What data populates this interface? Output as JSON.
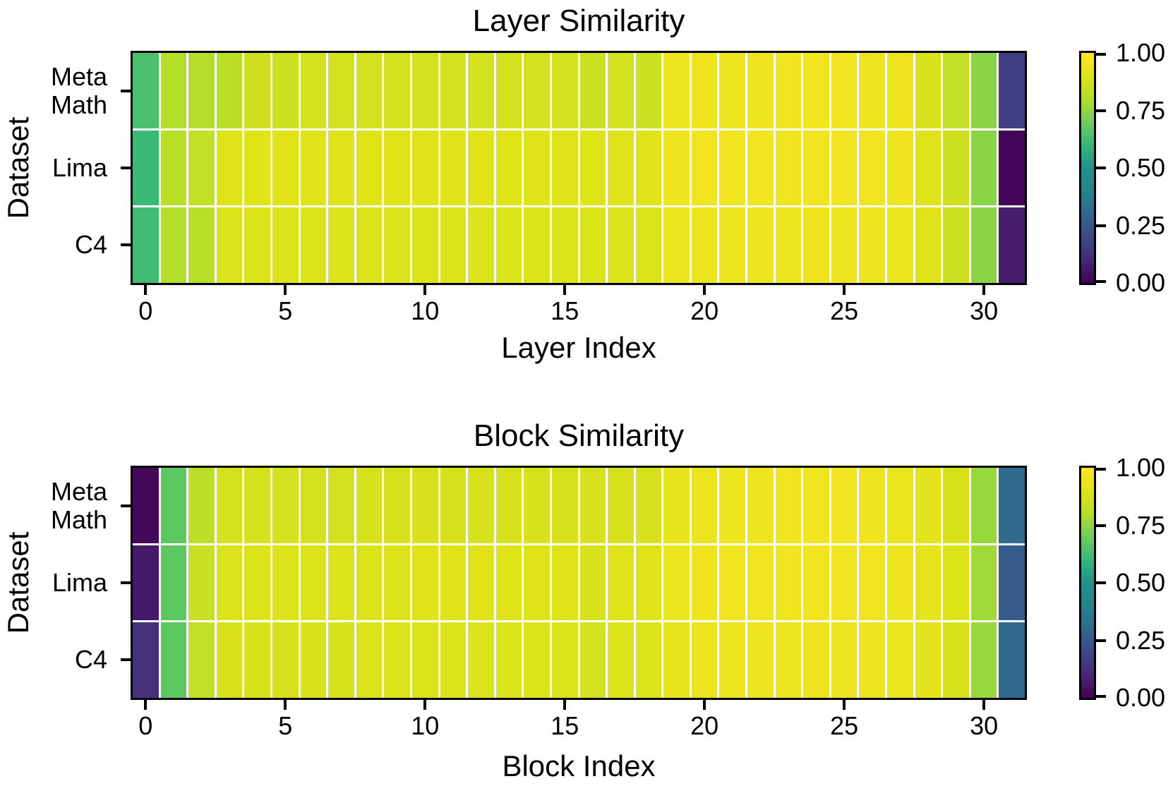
{
  "figure": {
    "background": "#ffffff"
  },
  "colors": {
    "viridis_stops": [
      "#440154",
      "#482878",
      "#3e4989",
      "#31688e",
      "#26828e",
      "#21918c",
      "#35b779",
      "#6ece58",
      "#b5de2b",
      "#dfe318",
      "#fde725"
    ],
    "grid_line": "#ffffff",
    "border": "#000000",
    "text": "#000000"
  },
  "chart_data": [
    {
      "type": "heatmap",
      "title": "Layer Similarity",
      "xlabel": "Layer Index",
      "ylabel": "Dataset",
      "x_range": [
        0,
        31
      ],
      "n_cols": 32,
      "x_tick_labels": [
        "0",
        "5",
        "10",
        "15",
        "20",
        "25",
        "30"
      ],
      "x_tick_positions": [
        0,
        5,
        10,
        15,
        20,
        25,
        30
      ],
      "categories_y": [
        "Meta Math",
        "Lima",
        "C4"
      ],
      "row_label_lines": [
        [
          "Meta",
          "Math"
        ],
        [
          "Lima"
        ],
        [
          "C4"
        ]
      ],
      "colorbar": {
        "colormap": "viridis",
        "range": [
          0,
          1
        ],
        "tick_labels": [
          "1.00",
          "0.75",
          "0.50",
          "0.25",
          "0.00"
        ]
      },
      "series": [
        {
          "name": "Meta Math",
          "values": [
            0.64,
            0.8,
            0.8,
            0.81,
            0.86,
            0.86,
            0.87,
            0.87,
            0.87,
            0.87,
            0.87,
            0.87,
            0.87,
            0.87,
            0.87,
            0.87,
            0.85,
            0.87,
            0.86,
            0.95,
            0.95,
            0.95,
            0.95,
            0.96,
            0.96,
            0.96,
            0.95,
            0.95,
            0.88,
            0.83,
            0.74,
            0.17
          ]
        },
        {
          "name": "Lima",
          "values": [
            0.61,
            0.81,
            0.83,
            0.9,
            0.9,
            0.9,
            0.9,
            0.9,
            0.9,
            0.9,
            0.9,
            0.9,
            0.9,
            0.9,
            0.9,
            0.9,
            0.9,
            0.9,
            0.9,
            0.95,
            0.96,
            0.96,
            0.96,
            0.96,
            0.96,
            0.96,
            0.96,
            0.95,
            0.9,
            0.86,
            0.74,
            0.01
          ]
        },
        {
          "name": "C4",
          "values": [
            0.62,
            0.8,
            0.81,
            0.89,
            0.89,
            0.89,
            0.89,
            0.89,
            0.89,
            0.89,
            0.89,
            0.89,
            0.89,
            0.89,
            0.89,
            0.89,
            0.89,
            0.89,
            0.89,
            0.94,
            0.94,
            0.95,
            0.95,
            0.95,
            0.95,
            0.95,
            0.95,
            0.94,
            0.9,
            0.86,
            0.74,
            0.07
          ]
        }
      ]
    },
    {
      "type": "heatmap",
      "title": "Block Similarity",
      "xlabel": "Block Index",
      "ylabel": "Dataset",
      "x_range": [
        0,
        31
      ],
      "n_cols": 32,
      "x_tick_labels": [
        "0",
        "5",
        "10",
        "15",
        "20",
        "25",
        "30"
      ],
      "x_tick_positions": [
        0,
        5,
        10,
        15,
        20,
        25,
        30
      ],
      "categories_y": [
        "Meta Math",
        "Lima",
        "C4"
      ],
      "row_label_lines": [
        [
          "Meta",
          "Math"
        ],
        [
          "Lima"
        ],
        [
          "C4"
        ]
      ],
      "colorbar": {
        "colormap": "viridis",
        "range": [
          0,
          1
        ],
        "tick_labels": [
          "1.00",
          "0.75",
          "0.50",
          "0.25",
          "0.00"
        ]
      },
      "series": [
        {
          "name": "Meta Math",
          "values": [
            0.02,
            0.67,
            0.82,
            0.87,
            0.87,
            0.87,
            0.87,
            0.87,
            0.88,
            0.88,
            0.88,
            0.88,
            0.88,
            0.88,
            0.88,
            0.88,
            0.88,
            0.88,
            0.88,
            0.93,
            0.94,
            0.95,
            0.95,
            0.96,
            0.96,
            0.96,
            0.95,
            0.94,
            0.92,
            0.88,
            0.76,
            0.31
          ]
        },
        {
          "name": "Lima",
          "values": [
            0.06,
            0.67,
            0.84,
            0.89,
            0.89,
            0.89,
            0.89,
            0.89,
            0.89,
            0.89,
            0.9,
            0.9,
            0.9,
            0.9,
            0.9,
            0.9,
            0.88,
            0.9,
            0.9,
            0.94,
            0.95,
            0.96,
            0.96,
            0.96,
            0.96,
            0.96,
            0.96,
            0.95,
            0.93,
            0.89,
            0.77,
            0.26
          ]
        },
        {
          "name": "C4",
          "values": [
            0.12,
            0.67,
            0.83,
            0.88,
            0.88,
            0.88,
            0.88,
            0.88,
            0.89,
            0.89,
            0.89,
            0.89,
            0.89,
            0.89,
            0.89,
            0.89,
            0.87,
            0.89,
            0.89,
            0.93,
            0.94,
            0.95,
            0.95,
            0.95,
            0.95,
            0.95,
            0.95,
            0.94,
            0.92,
            0.88,
            0.76,
            0.3
          ]
        }
      ]
    }
  ]
}
